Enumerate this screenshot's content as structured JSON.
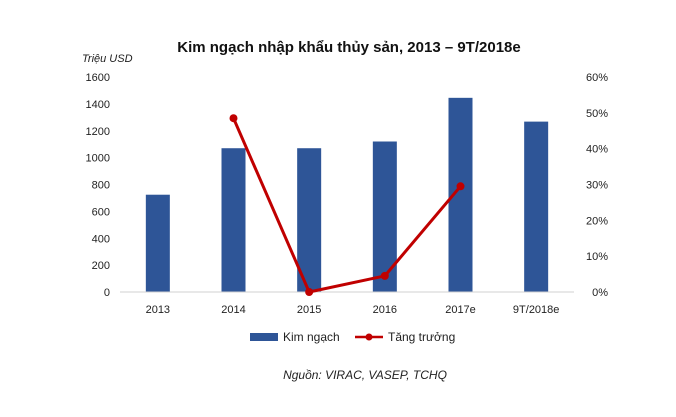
{
  "chart_data": {
    "type": "bar",
    "title": "Kim ngạch nhập khẩu thủy sản, 2013 – 9T/2018e",
    "ylabel": "Triệu USD",
    "categories": [
      "2013",
      "2014",
      "2015",
      "2016",
      "2017e",
      "9T/2018e"
    ],
    "ylim": [
      0,
      1600
    ],
    "y_ticks": [
      "1600",
      "1400",
      "1200",
      "1000",
      "800",
      "600",
      "400",
      "200",
      "0"
    ],
    "y2lim": [
      0,
      0.6
    ],
    "y2_ticks": [
      "60%",
      "50%",
      "40%",
      "30%",
      "20%",
      "10%",
      "0%"
    ],
    "series": [
      {
        "name": "Kim ngạch",
        "type": "bar",
        "color": "#2E5597",
        "values": [
          724,
          1070,
          1070,
          1120,
          1445,
          1268
        ]
      },
      {
        "name": "Tăng trưởng",
        "type": "line",
        "axis": "right",
        "color": "#C00000",
        "values": [
          null,
          0.485,
          0.0,
          0.045,
          0.295,
          null
        ]
      }
    ],
    "grid": false,
    "legend_position": "bottom",
    "source": "Nguồn: VIRAC, VASEP, TCHQ"
  }
}
